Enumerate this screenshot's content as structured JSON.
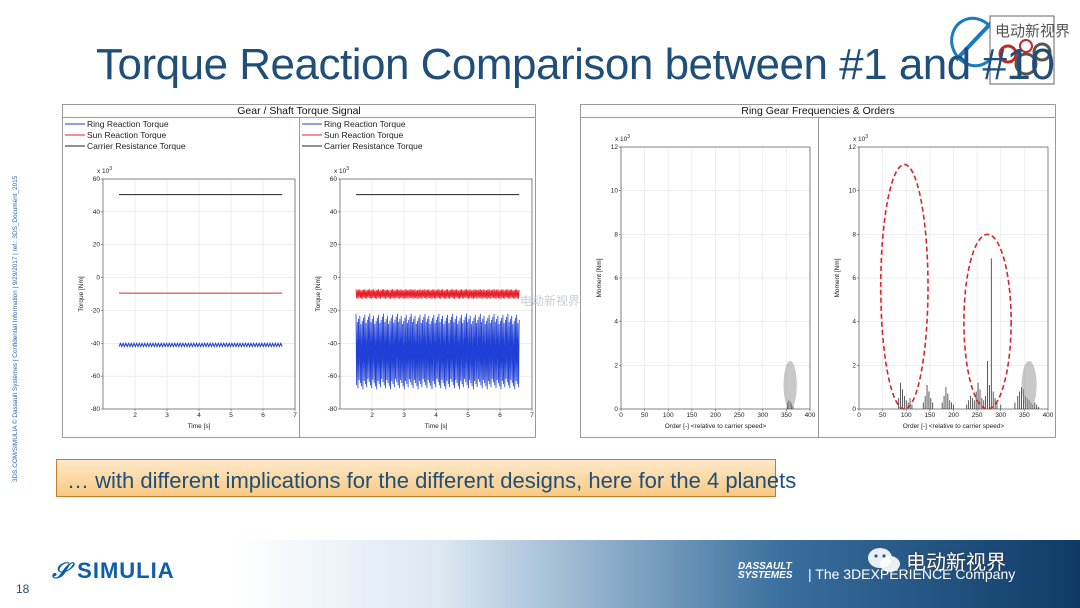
{
  "title": "Torque Reaction Comparison between #1 and #10",
  "side_note": "3DS.COM/SIMULIA © Dassault Systèmes | Confidential Information | 9/29/2017 | ref.: 3DS_Document_2015",
  "callout": "… with different implications for the different designs, here for the 4 planets",
  "page_number": "18",
  "logos": {
    "simulia": "SIMULIA",
    "dassault": "DASSAULT SYSTEMES",
    "tagline": "| The 3DEXPERIENCE Company",
    "wechat": "电动新视界",
    "top_logo_text": "电动新视界",
    "watermark": "电动新视界"
  },
  "colors": {
    "title": "#1f4e79",
    "ring": "#1f3fd6",
    "sun": "#e8202a",
    "carrier": "#222222",
    "highlight_ellipse": "#d9262b",
    "gray_highlight": "#9a9a9a"
  },
  "chart_data": [
    {
      "type": "line",
      "panel_title": "Gear / Shaft Torque Signal",
      "design": "#1",
      "legend": [
        "Ring Reaction Torque",
        "Sun Reaction Torque",
        "Carrier Resistance Torque"
      ],
      "xlabel": "Time [s]",
      "ylabel": "Torque [Nm]",
      "y_multiplier": "x 10^3",
      "xlim": [
        1,
        7
      ],
      "ylim": [
        -80,
        60
      ],
      "x_ticks": [
        2,
        3,
        4,
        5,
        6,
        7
      ],
      "y_ticks": [
        -80,
        -60,
        -40,
        -20,
        0,
        20,
        40,
        60
      ],
      "grid": true,
      "series": [
        {
          "name": "Ring Reaction Torque",
          "x_start": 1.5,
          "x_end": 6.6,
          "mean": -41,
          "ripple": 1
        },
        {
          "name": "Sun Reaction Torque",
          "x_start": 1.5,
          "x_end": 6.6,
          "mean": -9.5,
          "ripple": 0
        },
        {
          "name": "Carrier Resistance Torque",
          "x_start": 1.5,
          "x_end": 6.6,
          "mean": 50.5,
          "ripple": 0
        }
      ]
    },
    {
      "type": "line",
      "panel_title": "Gear / Shaft Torque Signal",
      "design": "#10",
      "legend": [
        "Ring Reaction Torque",
        "Sun Reaction Torque",
        "Carrier Resistance Torque"
      ],
      "xlabel": "Time [s]",
      "ylabel": "Torque [Nm]",
      "y_multiplier": "x 10^3",
      "xlim": [
        1,
        7
      ],
      "ylim": [
        -80,
        60
      ],
      "x_ticks": [
        2,
        3,
        4,
        5,
        6,
        7
      ],
      "y_ticks": [
        -80,
        -60,
        -40,
        -20,
        0,
        20,
        40,
        60
      ],
      "grid": true,
      "series": [
        {
          "name": "Ring Reaction Torque",
          "x_start": 1.5,
          "x_end": 6.6,
          "min": -68,
          "max": -22
        },
        {
          "name": "Sun Reaction Torque",
          "x_start": 1.5,
          "x_end": 6.6,
          "min": -13,
          "max": -7
        },
        {
          "name": "Carrier Resistance Torque",
          "x_start": 1.5,
          "x_end": 6.6,
          "mean": 50.5,
          "ripple": 0
        }
      ]
    },
    {
      "type": "bar",
      "panel_title": "Ring Gear Frequencies & Orders",
      "design": "#1",
      "xlabel": "Order [-] <relative to carrier speed>",
      "ylabel": "Moment [Nm]",
      "y_multiplier": "x 10^3",
      "xlim": [
        0,
        400
      ],
      "ylim": [
        0,
        12
      ],
      "x_ticks": [
        0,
        50,
        100,
        150,
        200,
        250,
        300,
        350,
        400
      ],
      "y_ticks": [
        0,
        2,
        4,
        6,
        8,
        10,
        12
      ],
      "grid": true,
      "x": [
        352,
        355,
        358,
        361,
        364
      ],
      "values": [
        0.3,
        0.4,
        0.35,
        0.25,
        0.15
      ],
      "highlight": {
        "kind": "gray-ellipse",
        "x_center": 358,
        "y_center": 1.1,
        "x_radius": 14,
        "y_radius": 1.1
      }
    },
    {
      "type": "bar",
      "panel_title": "Ring Gear Frequencies & Orders",
      "design": "#10",
      "xlabel": "Order [-] <relative to carrier speed>",
      "ylabel": "Moment [Nm]",
      "y_multiplier": "x 10^3",
      "xlim": [
        0,
        400
      ],
      "ylim": [
        0,
        12
      ],
      "x_ticks": [
        0,
        50,
        100,
        150,
        200,
        250,
        300,
        350,
        400
      ],
      "y_ticks": [
        0,
        2,
        4,
        6,
        8,
        10,
        12
      ],
      "grid": true,
      "x": [
        84,
        88,
        92,
        96,
        100,
        104,
        108,
        112,
        136,
        140,
        144,
        148,
        152,
        156,
        176,
        180,
        184,
        188,
        192,
        196,
        200,
        228,
        232,
        236,
        240,
        244,
        248,
        252,
        256,
        260,
        264,
        268,
        272,
        276,
        280,
        284,
        288,
        292,
        300,
        330,
        336,
        340,
        344,
        348,
        352,
        356,
        360,
        364,
        368,
        372,
        376,
        380
      ],
      "values": [
        0.5,
        1.2,
        0.9,
        0.6,
        0.4,
        0.3,
        0.5,
        0.2,
        0.3,
        0.6,
        1.1,
        0.8,
        0.5,
        0.3,
        0.3,
        0.6,
        1.0,
        0.7,
        0.4,
        0.3,
        0.2,
        0.2,
        0.4,
        0.6,
        0.5,
        0.4,
        0.8,
        1.2,
        0.9,
        0.5,
        0.4,
        0.6,
        2.2,
        1.1,
        6.9,
        0.8,
        0.5,
        0.4,
        0.2,
        0.3,
        0.6,
        0.8,
        1.0,
        0.9,
        0.6,
        0.5,
        0.4,
        0.3,
        0.2,
        0.3,
        0.2,
        0.1
      ],
      "highlights": [
        {
          "kind": "red-dashed-ellipse",
          "x_center": 96,
          "y_center": 5.6,
          "x_radius": 50,
          "y_radius": 5.6
        },
        {
          "kind": "red-dashed-ellipse",
          "x_center": 272,
          "y_center": 4.0,
          "x_radius": 50,
          "y_radius": 4.0
        },
        {
          "kind": "gray-ellipse",
          "x_center": 360,
          "y_center": 1.1,
          "x_radius": 16,
          "y_radius": 1.1
        }
      ]
    }
  ]
}
